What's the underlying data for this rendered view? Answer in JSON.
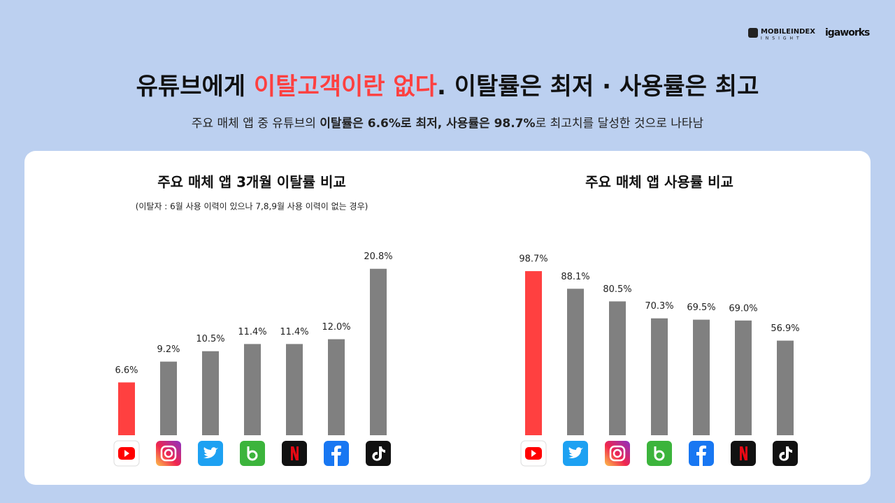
{
  "header": {
    "brand": "MOBILEINDEX",
    "brand_sub": "INSIGHT",
    "partner": "igaworks",
    "title": [
      "유튜브에게 ",
      "이탈고객이란 없다",
      ". 이탈률은 최저 · 사용률은 최고"
    ],
    "subtitle": [
      "주요 매체 앱 중 유튜브의 ",
      "이탈률은 6.6%로 최저, 사용률은 98.7%",
      "로 최고치를 달성한 것으로 나타남"
    ]
  },
  "chart_data": [
    {
      "type": "bar",
      "title": "주요 매체 앱 3개월 이탈률 비교",
      "note": "(이탈자 : 6월 사용 이력이 있으나 7,8,9월 사용 이력이 없는 경우)",
      "categories": [
        null,
        null,
        null,
        null,
        null,
        null,
        null
      ],
      "values": [
        6.6,
        9.2,
        10.5,
        11.4,
        11.4,
        12.0,
        20.8
      ],
      "value_labels": [
        "6.6%",
        "9.2%",
        "10.5%",
        "11.4%",
        "11.4%",
        "12.0%",
        "20.8%"
      ],
      "colors": [
        "#ff4040",
        "#808080",
        "#808080",
        "#808080",
        "#808080",
        "#808080",
        "#808080"
      ],
      "ylim": [
        0,
        22
      ]
    },
    {
      "type": "bar",
      "title": "주요 매체 앱 사용률 비교",
      "categories": [
        null,
        null,
        null,
        null,
        null,
        null,
        null
      ],
      "values": [
        98.7,
        88.1,
        80.5,
        70.3,
        69.5,
        69.0,
        56.9
      ],
      "value_labels": [
        "98.7%",
        "88.1%",
        "80.5%",
        "70.3%",
        "69.5%",
        "69.0%",
        "56.9%"
      ],
      "colors": [
        "#ff4040",
        "#808080",
        "#808080",
        "#808080",
        "#808080",
        "#808080",
        "#808080"
      ],
      "ylim": [
        0,
        100
      ]
    }
  ]
}
